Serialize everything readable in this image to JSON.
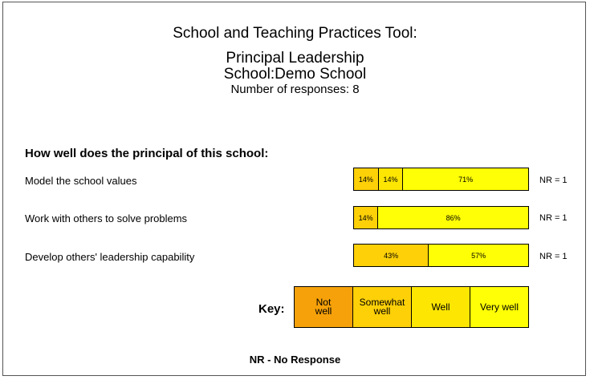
{
  "header": {
    "title": "School and Teaching Practices Tool:",
    "subtitle": "Principal Leadership",
    "school": "School:Demo School",
    "responses": "Number of responses: 8"
  },
  "question": "How well does the principal of this school:",
  "chart_data": {
    "type": "bar",
    "stacked": true,
    "orientation": "horizontal",
    "categories": [
      "Model the school values",
      "Work with others to solve problems",
      "Develop others' leadership capability"
    ],
    "series": [
      {
        "name": "Not well",
        "color": "#f6a10a",
        "values": [
          0,
          0,
          0
        ]
      },
      {
        "name": "Somewhat well",
        "color": "#fdd008",
        "values": [
          14,
          14,
          43
        ]
      },
      {
        "name": "Well",
        "color": "#fde602",
        "values": [
          14,
          0,
          0
        ]
      },
      {
        "name": "Very well",
        "color": "#ffff06",
        "values": [
          71,
          86,
          57
        ]
      }
    ],
    "labels": [
      [
        "",
        "14%",
        "14%",
        "71%"
      ],
      [
        "",
        "14%",
        "",
        "86%"
      ],
      [
        "",
        "43%",
        "",
        "57%"
      ]
    ],
    "nr": [
      "NR = 1",
      "NR = 1",
      "NR = 1"
    ]
  },
  "key": {
    "label": "Key:",
    "items": [
      {
        "text": "Not\nwell",
        "color": "#f6a10a"
      },
      {
        "text": "Somewhat\nwell",
        "color": "#fdd008"
      },
      {
        "text": "Well",
        "color": "#fde602"
      },
      {
        "text": "Very well",
        "color": "#ffff06"
      }
    ]
  },
  "footer": "NR - No Response"
}
